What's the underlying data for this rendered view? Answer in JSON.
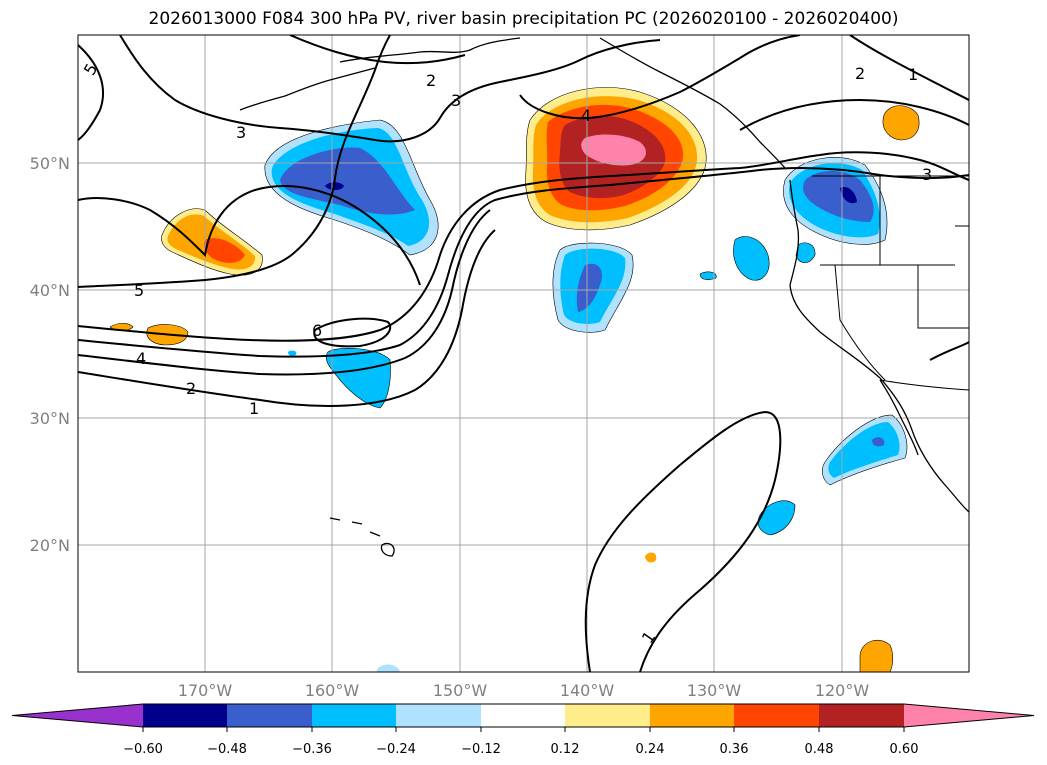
{
  "title": "2026013000 F084 300 hPa PV, river basin precipitation PC (2026020100 - 2026020400)",
  "axes": {
    "lat_labels": [
      "50°N",
      "40°N",
      "30°N",
      "20°N"
    ],
    "lon_labels": [
      "170°W",
      "160°W",
      "150°W",
      "140°W",
      "130°W",
      "120°W"
    ]
  },
  "contour_labels": [
    "5",
    "3",
    "2",
    "3",
    "4",
    "2",
    "1",
    "3",
    "5",
    "6",
    "4",
    "2",
    "1",
    "1"
  ],
  "colorbar": {
    "tick_labels": [
      "−0.60",
      "−0.48",
      "−0.36",
      "−0.24",
      "−0.12",
      "0.12",
      "0.24",
      "0.36",
      "0.48",
      "0.60"
    ],
    "colors": [
      "#9932cc",
      "#00008b",
      "#3a5fcd",
      "#00bfff",
      "#b0e2ff",
      "#ffffff",
      "#ffec8b",
      "#ffa500",
      "#ff4500",
      "#b22222",
      "#ff82ab"
    ]
  }
}
